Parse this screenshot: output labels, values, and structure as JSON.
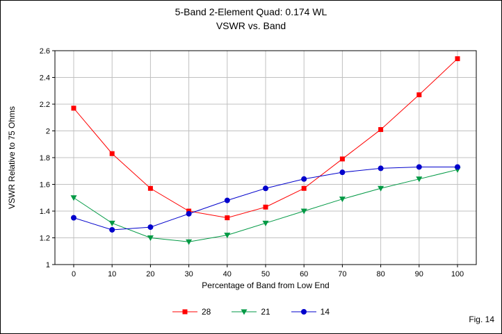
{
  "figure_label": "Fig. 14",
  "chart_data": {
    "type": "line",
    "title": "5-Band 2-Element Quad: 0.174 WL",
    "subtitle": "VSWR vs. Band",
    "xlabel": "Percentage of Band from Low End",
    "ylabel": "VSWR Relative to 75 Ohms",
    "x": [
      0,
      10,
      20,
      30,
      40,
      50,
      60,
      70,
      80,
      90,
      100
    ],
    "ylim": [
      1,
      2.6
    ],
    "ytick_step": 0.2,
    "grid": true,
    "legend_position": "bottom",
    "gridline_color": "#c0c0c0",
    "axis_color": "#000000",
    "series": [
      {
        "name": "28",
        "marker": "square",
        "color": "#ff0000",
        "values": [
          2.17,
          1.83,
          1.57,
          1.4,
          1.35,
          1.43,
          1.57,
          1.79,
          2.01,
          2.27,
          2.54
        ]
      },
      {
        "name": "21",
        "marker": "triangle-down",
        "color": "#009944",
        "values": [
          1.5,
          1.31,
          1.2,
          1.17,
          1.22,
          1.31,
          1.4,
          1.49,
          1.57,
          1.64,
          1.71
        ]
      },
      {
        "name": "14",
        "marker": "circle",
        "color": "#0000cc",
        "values": [
          1.35,
          1.26,
          1.28,
          1.38,
          1.48,
          1.57,
          1.64,
          1.69,
          1.72,
          1.73,
          1.73
        ]
      }
    ]
  }
}
